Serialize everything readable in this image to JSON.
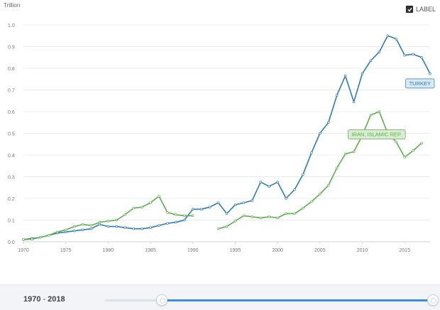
{
  "unit_label": "Trillion",
  "label_toggle": {
    "text": "LABEL",
    "checked": true
  },
  "footer": {
    "range_start": "1970",
    "range_sep": "-",
    "range_end": "2018"
  },
  "chart_data": {
    "type": "line",
    "ylim": [
      0,
      1.0
    ],
    "yticks": [
      "0.0",
      "0.1",
      "0.2",
      "0.3",
      "0.4",
      "0.5",
      "0.6",
      "0.7",
      "0.8",
      "0.9",
      "1.0"
    ],
    "xlim": [
      1970,
      2018
    ],
    "xticks": [
      "1970",
      "1975",
      "1980",
      "1985",
      "1990",
      "1995",
      "2000",
      "2005",
      "2010",
      "2015"
    ],
    "grid": true,
    "series": [
      {
        "name": "TURKEY",
        "color": "#2f7ab8",
        "x": [
          1970,
          1971,
          1972,
          1973,
          1974,
          1975,
          1976,
          1977,
          1978,
          1979,
          1980,
          1981,
          1982,
          1983,
          1984,
          1985,
          1986,
          1987,
          1988,
          1989,
          1990,
          1991,
          1992,
          1993,
          1994,
          1995,
          1996,
          1997,
          1998,
          1999,
          2000,
          2001,
          2002,
          2003,
          2004,
          2005,
          2006,
          2007,
          2008,
          2009,
          2010,
          2011,
          2012,
          2013,
          2014,
          2015,
          2016,
          2017,
          2018
        ],
        "y": [
          0.01,
          0.015,
          0.02,
          0.03,
          0.04,
          0.045,
          0.05,
          0.055,
          0.06,
          0.08,
          0.07,
          0.07,
          0.065,
          0.06,
          0.06,
          0.065,
          0.075,
          0.085,
          0.09,
          0.1,
          0.15,
          0.15,
          0.16,
          0.18,
          0.13,
          0.17,
          0.18,
          0.19,
          0.275,
          0.255,
          0.275,
          0.2,
          0.24,
          0.31,
          0.41,
          0.5,
          0.55,
          0.675,
          0.765,
          0.645,
          0.775,
          0.835,
          0.875,
          0.95,
          0.935,
          0.86,
          0.865,
          0.85,
          0.775
        ]
      },
      {
        "name": "IRAN, ISLAMIC REP.",
        "color": "#5cae4a",
        "x": [
          1970,
          1971,
          1972,
          1973,
          1974,
          1975,
          1976,
          1977,
          1978,
          1979,
          1980,
          1981,
          1982,
          1983,
          1984,
          1985,
          1986,
          1987,
          1988,
          1989,
          1990,
          null,
          1993,
          1994,
          1995,
          1996,
          1997,
          1998,
          1999,
          2000,
          2001,
          2002,
          2003,
          2004,
          2005,
          2006,
          2007,
          2008,
          2009,
          2010,
          2011,
          2012,
          2013,
          2014,
          2015,
          2016,
          2017
        ],
        "y": [
          0.01,
          0.012,
          0.02,
          0.03,
          0.045,
          0.055,
          0.07,
          0.08,
          0.075,
          0.09,
          0.095,
          0.1,
          0.125,
          0.155,
          0.16,
          0.18,
          0.21,
          0.135,
          0.125,
          0.12,
          0.12,
          null,
          0.06,
          0.07,
          0.095,
          0.12,
          0.115,
          0.11,
          0.115,
          0.11,
          0.13,
          0.13,
          0.155,
          0.185,
          0.22,
          0.26,
          0.34,
          0.405,
          0.415,
          0.49,
          0.585,
          0.6,
          0.5,
          0.46,
          0.39,
          0.42,
          0.455
        ]
      }
    ],
    "annotations": [
      {
        "text": "TURKEY",
        "series": 0,
        "anchor_x": 2017.8,
        "anchor_y": 0.73
      },
      {
        "text": "IRAN, ISLAMIC REP.",
        "series": 1,
        "anchor_x": 2011.7,
        "anchor_y": 0.495
      }
    ]
  },
  "slider": {
    "range_start_year": 1970,
    "range_end_year": 2018,
    "min_year": 1960,
    "max_year": 2018
  }
}
